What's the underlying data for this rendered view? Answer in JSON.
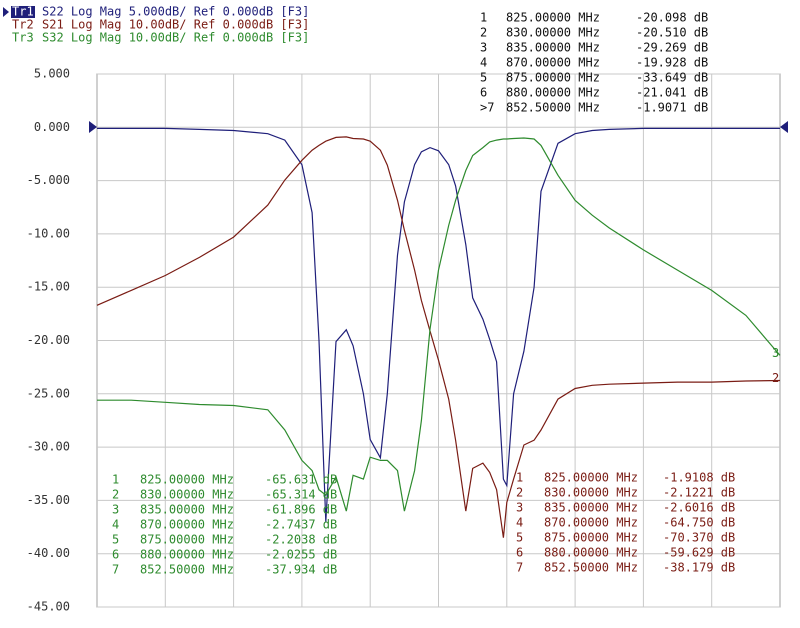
{
  "chart_data": {
    "type": "line",
    "x": [
      755,
      765,
      775,
      785,
      795,
      805,
      810,
      815,
      818,
      820,
      822,
      825,
      828,
      830,
      833,
      835,
      838,
      840,
      843,
      845,
      848,
      850,
      852.5,
      855,
      858,
      860,
      863,
      865,
      868,
      870,
      872,
      874,
      875,
      877,
      880,
      883,
      885,
      890,
      895,
      900,
      905,
      915,
      925,
      935,
      945,
      955
    ],
    "xlim": [
      755,
      955
    ],
    "ylim": [
      -45,
      5
    ],
    "y2lim": [
      -90,
      10
    ],
    "yticks": [
      {
        "value": 5,
        "label": "5.000"
      },
      {
        "value": 0,
        "label": "0.000"
      },
      {
        "value": -5,
        "label": "-5.000"
      },
      {
        "value": -10,
        "label": "-10.00"
      },
      {
        "value": -15,
        "label": "-15.00"
      },
      {
        "value": -20,
        "label": "-20.00"
      },
      {
        "value": -25,
        "label": "-25.00"
      },
      {
        "value": -30,
        "label": "-30.00"
      },
      {
        "value": -35,
        "label": "-35.00"
      },
      {
        "value": -40,
        "label": "-40.00"
      },
      {
        "value": -45,
        "label": "-45.00"
      }
    ],
    "grid": true,
    "series": [
      {
        "name": "Tr1",
        "trace_info": "S22 Log Mag 5.000dB/ Ref 0.000dB [F3]",
        "color": "#1f1f7a",
        "values": [
          -0.1,
          -0.1,
          -0.1,
          -0.2,
          -0.3,
          -0.6,
          -1.2,
          -3.5,
          -8,
          -20,
          -37,
          -20.1,
          -19,
          -20.5,
          -25,
          -29.3,
          -31,
          -25,
          -12,
          -7,
          -3.5,
          -2.3,
          -1.9,
          -2.2,
          -3.5,
          -5.5,
          -11,
          -16,
          -18,
          -19.9,
          -22,
          -33,
          -33.6,
          -25,
          -21,
          -15,
          -6,
          -1.5,
          -0.6,
          -0.3,
          -0.2,
          -0.1,
          -0.1,
          -0.1,
          -0.1,
          -0.1
        ]
      },
      {
        "name": "Tr2",
        "trace_info": "S21 Log Mag 10.00dB/ Ref 0.000dB [F3]",
        "color": "#7a1c14",
        "axis": "y2",
        "end_label": "2",
        "values": [
          -33.4,
          -30.6,
          -27.8,
          -24.4,
          -20.6,
          -14.6,
          -9.9,
          -6.2,
          -4.3,
          -3.4,
          -2.6,
          -1.9,
          -1.8,
          -2.1,
          -2.2,
          -2.6,
          -4.3,
          -7.1,
          -13.7,
          -19.3,
          -26.8,
          -32.5,
          -38.2,
          -43.7,
          -51,
          -58.7,
          -72,
          -64,
          -63,
          -64.75,
          -68,
          -77,
          -70.4,
          -66,
          -59.6,
          -58.7,
          -56.8,
          -51,
          -49,
          -48.4,
          -48.2,
          -48,
          -47.8,
          -47.8,
          -47.6,
          -47.5
        ]
      },
      {
        "name": "Tr3",
        "trace_info": "S32 Log Mag 10.00dB/ Ref 0.000dB [F3]",
        "color": "#2e8b2e",
        "axis": "y2",
        "end_label": "3",
        "values": [
          -51.2,
          -51.2,
          -51.6,
          -52,
          -52.2,
          -53,
          -56.8,
          -62.5,
          -64.4,
          -68,
          -69,
          -65.6,
          -72,
          -65.3,
          -66,
          -61.9,
          -62.5,
          -62.5,
          -64.4,
          -72,
          -64.4,
          -55,
          -37.9,
          -26.8,
          -18.4,
          -13.7,
          -8.1,
          -5.3,
          -3.8,
          -2.74,
          -2.4,
          -2.2,
          -2.2,
          -2.1,
          -2,
          -2.2,
          -3.4,
          -9,
          -13.7,
          -16.5,
          -18.9,
          -23,
          -26.8,
          -30.6,
          -35.3,
          -42.8
        ]
      }
    ],
    "marker_tables": [
      {
        "color": "#111111",
        "rows": [
          [
            "1",
            "825.00000 MHz",
            "-20.098 dB"
          ],
          [
            "2",
            "830.00000 MHz",
            "-20.510 dB"
          ],
          [
            "3",
            "835.00000 MHz",
            "-29.269 dB"
          ],
          [
            "4",
            "870.00000 MHz",
            "-19.928 dB"
          ],
          [
            "5",
            "875.00000 MHz",
            "-33.649 dB"
          ],
          [
            "6",
            "880.00000 MHz",
            "-21.041 dB"
          ],
          [
            ">7",
            "852.50000 MHz",
            "-1.9071 dB"
          ]
        ]
      },
      {
        "color": "#2e8b2e",
        "rows": [
          [
            "1",
            "825.00000 MHz",
            "-65.631 dB"
          ],
          [
            "2",
            "830.00000 MHz",
            "-65.314 dB"
          ],
          [
            "3",
            "835.00000 MHz",
            "-61.896 dB"
          ],
          [
            "4",
            "870.00000 MHz",
            "-2.7437 dB"
          ],
          [
            "5",
            "875.00000 MHz",
            "-2.2038 dB"
          ],
          [
            "6",
            "880.00000 MHz",
            "-2.0255 dB"
          ],
          [
            "7",
            "852.50000 MHz",
            "-37.934 dB"
          ]
        ]
      },
      {
        "color": "#7a1c14",
        "rows": [
          [
            "1",
            "825.00000 MHz",
            "-1.9108 dB"
          ],
          [
            "2",
            "830.00000 MHz",
            "-2.1221 dB"
          ],
          [
            "3",
            "835.00000 MHz",
            "-2.6016 dB"
          ],
          [
            "4",
            "870.00000 MHz",
            "-64.750 dB"
          ],
          [
            "5",
            "875.00000 MHz",
            "-70.370 dB"
          ],
          [
            "6",
            "880.00000 MHz",
            "-59.629 dB"
          ],
          [
            "7",
            "852.50000 MHz",
            "-38.179 dB"
          ]
        ]
      }
    ]
  }
}
